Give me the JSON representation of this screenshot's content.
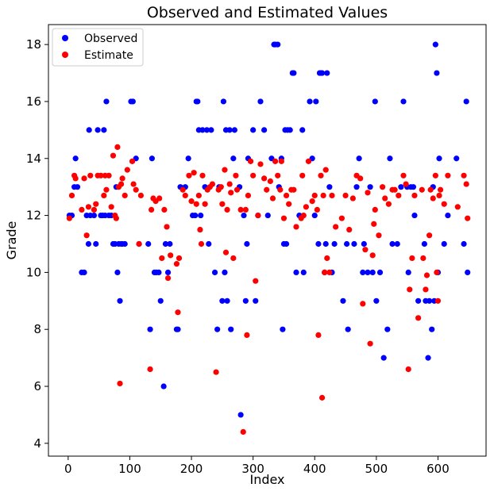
{
  "chart_data": {
    "type": "scatter",
    "title": "Observed and Estimated Values",
    "xlabel": "Index",
    "ylabel": "Grade",
    "xlim": [
      -32,
      678
    ],
    "ylim": [
      3.55,
      18.7
    ],
    "xticks": [
      0,
      100,
      200,
      300,
      400,
      500,
      600
    ],
    "yticks": [
      4,
      6,
      8,
      10,
      12,
      14,
      16,
      18
    ],
    "grid": false,
    "legend_position": "top-left",
    "series": [
      {
        "name": "Observed",
        "color": "#0000ff",
        "points": [
          [
            2,
            12
          ],
          [
            6,
            12
          ],
          [
            10,
            13
          ],
          [
            12,
            14
          ],
          [
            15,
            13
          ],
          [
            22,
            10
          ],
          [
            26,
            10
          ],
          [
            30,
            12
          ],
          [
            33,
            11
          ],
          [
            34,
            15
          ],
          [
            36,
            12
          ],
          [
            42,
            12
          ],
          [
            45,
            11
          ],
          [
            48,
            15
          ],
          [
            53,
            12
          ],
          [
            56,
            12
          ],
          [
            58,
            15
          ],
          [
            60,
            12
          ],
          [
            62,
            16
          ],
          [
            66,
            12
          ],
          [
            70,
            12
          ],
          [
            73,
            11
          ],
          [
            76,
            11
          ],
          [
            78,
            13
          ],
          [
            80,
            10
          ],
          [
            82,
            11
          ],
          [
            84,
            9
          ],
          [
            86,
            11
          ],
          [
            88,
            11
          ],
          [
            92,
            11
          ],
          [
            102,
            16
          ],
          [
            105,
            16
          ],
          [
            110,
            14
          ],
          [
            115,
            11
          ],
          [
            130,
            11
          ],
          [
            133,
            8
          ],
          [
            136,
            14
          ],
          [
            140,
            10
          ],
          [
            143,
            10
          ],
          [
            147,
            10
          ],
          [
            150,
            9
          ],
          [
            155,
            6
          ],
          [
            158,
            11
          ],
          [
            162,
            10
          ],
          [
            165,
            11
          ],
          [
            176,
            8
          ],
          [
            178,
            8
          ],
          [
            182,
            13
          ],
          [
            190,
            13
          ],
          [
            195,
            14
          ],
          [
            202,
            12
          ],
          [
            206,
            12
          ],
          [
            208,
            16
          ],
          [
            210,
            16
          ],
          [
            212,
            15
          ],
          [
            215,
            12
          ],
          [
            218,
            15
          ],
          [
            222,
            13
          ],
          [
            225,
            15
          ],
          [
            228,
            11
          ],
          [
            232,
            15
          ],
          [
            238,
            10
          ],
          [
            242,
            8
          ],
          [
            245,
            13
          ],
          [
            250,
            9
          ],
          [
            252,
            16
          ],
          [
            254,
            10
          ],
          [
            256,
            15
          ],
          [
            258,
            9
          ],
          [
            262,
            15
          ],
          [
            264,
            8
          ],
          [
            268,
            14
          ],
          [
            270,
            15
          ],
          [
            278,
            13
          ],
          [
            280,
            5
          ],
          [
            285,
            12
          ],
          [
            288,
            9
          ],
          [
            290,
            11
          ],
          [
            292,
            14
          ],
          [
            300,
            15
          ],
          [
            304,
            9
          ],
          [
            308,
            12
          ],
          [
            312,
            16
          ],
          [
            318,
            15
          ],
          [
            324,
            12
          ],
          [
            330,
            14
          ],
          [
            334,
            18
          ],
          [
            336,
            18
          ],
          [
            340,
            18
          ],
          [
            342,
            13
          ],
          [
            346,
            14
          ],
          [
            348,
            8
          ],
          [
            350,
            11
          ],
          [
            352,
            15
          ],
          [
            354,
            11
          ],
          [
            356,
            15
          ],
          [
            360,
            15
          ],
          [
            364,
            17
          ],
          [
            366,
            17
          ],
          [
            370,
            10
          ],
          [
            375,
            12
          ],
          [
            380,
            15
          ],
          [
            382,
            10
          ],
          [
            392,
            16
          ],
          [
            396,
            14
          ],
          [
            400,
            12
          ],
          [
            402,
            16
          ],
          [
            406,
            11
          ],
          [
            408,
            17
          ],
          [
            410,
            17
          ],
          [
            412,
            17
          ],
          [
            416,
            10
          ],
          [
            418,
            11
          ],
          [
            420,
            17
          ],
          [
            424,
            13
          ],
          [
            428,
            10
          ],
          [
            432,
            11
          ],
          [
            446,
            9
          ],
          [
            452,
            11
          ],
          [
            454,
            8
          ],
          [
            464,
            11
          ],
          [
            468,
            13
          ],
          [
            472,
            14
          ],
          [
            478,
            10
          ],
          [
            480,
            11
          ],
          [
            486,
            10
          ],
          [
            490,
            13
          ],
          [
            494,
            10
          ],
          [
            498,
            16
          ],
          [
            500,
            9
          ],
          [
            506,
            10
          ],
          [
            512,
            7
          ],
          [
            518,
            8
          ],
          [
            522,
            14
          ],
          [
            526,
            11
          ],
          [
            534,
            11
          ],
          [
            540,
            13
          ],
          [
            544,
            16
          ],
          [
            550,
            13
          ],
          [
            552,
            10
          ],
          [
            556,
            13
          ],
          [
            560,
            13
          ],
          [
            562,
            12
          ],
          [
            568,
            9
          ],
          [
            578,
            11
          ],
          [
            580,
            9
          ],
          [
            584,
            7
          ],
          [
            586,
            9
          ],
          [
            590,
            8
          ],
          [
            592,
            13
          ],
          [
            594,
            9
          ],
          [
            596,
            18
          ],
          [
            598,
            17
          ],
          [
            600,
            10
          ],
          [
            602,
            14
          ],
          [
            610,
            11
          ],
          [
            616,
            12
          ],
          [
            630,
            14
          ],
          [
            642,
            11
          ],
          [
            646,
            16
          ],
          [
            648,
            10
          ]
        ]
      },
      {
        "name": "Estimate",
        "color": "#ff0000",
        "points": [
          [
            2,
            11.9
          ],
          [
            6,
            12.7
          ],
          [
            10,
            13.4
          ],
          [
            12,
            13.3
          ],
          [
            22,
            12.2
          ],
          [
            26,
            13.3
          ],
          [
            30,
            11.3
          ],
          [
            33,
            12.3
          ],
          [
            36,
            13.4
          ],
          [
            42,
            12.2
          ],
          [
            45,
            12.4
          ],
          [
            48,
            13.4
          ],
          [
            53,
            13.4
          ],
          [
            58,
            12.7
          ],
          [
            60,
            13.4
          ],
          [
            62,
            12.9
          ],
          [
            66,
            13.4
          ],
          [
            70,
            12.3
          ],
          [
            73,
            14.1
          ],
          [
            76,
            12.0
          ],
          [
            78,
            11.9
          ],
          [
            80,
            14.4
          ],
          [
            82,
            13.0
          ],
          [
            84,
            6.1
          ],
          [
            86,
            13.1
          ],
          [
            88,
            13.3
          ],
          [
            92,
            12.7
          ],
          [
            96,
            13.6
          ],
          [
            104,
            13.9
          ],
          [
            106,
            13.1
          ],
          [
            110,
            12.9
          ],
          [
            115,
            11.0
          ],
          [
            118,
            12.7
          ],
          [
            133,
            6.6
          ],
          [
            135,
            12.2
          ],
          [
            138,
            12.6
          ],
          [
            142,
            12.5
          ],
          [
            148,
            12.6
          ],
          [
            152,
            10.5
          ],
          [
            156,
            12.2
          ],
          [
            160,
            11.6
          ],
          [
            162,
            9.8
          ],
          [
            166,
            10.6
          ],
          [
            176,
            10.3
          ],
          [
            178,
            8.6
          ],
          [
            180,
            10.5
          ],
          [
            186,
            12.9
          ],
          [
            190,
            12.7
          ],
          [
            196,
            13.4
          ],
          [
            200,
            12.5
          ],
          [
            204,
            13.5
          ],
          [
            208,
            12.4
          ],
          [
            212,
            12.7
          ],
          [
            214,
            11.5
          ],
          [
            216,
            11.0
          ],
          [
            218,
            13.4
          ],
          [
            222,
            12.4
          ],
          [
            226,
            12.9
          ],
          [
            230,
            13.0
          ],
          [
            234,
            13.1
          ],
          [
            240,
            6.5
          ],
          [
            244,
            12.9
          ],
          [
            248,
            13.0
          ],
          [
            250,
            12.4
          ],
          [
            254,
            13.6
          ],
          [
            256,
            10.7
          ],
          [
            258,
            12.2
          ],
          [
            262,
            13.1
          ],
          [
            264,
            12.8
          ],
          [
            268,
            10.5
          ],
          [
            272,
            13.4
          ],
          [
            274,
            12.9
          ],
          [
            280,
            12.2
          ],
          [
            284,
            4.4
          ],
          [
            288,
            12.2
          ],
          [
            290,
            7.8
          ],
          [
            292,
            12.7
          ],
          [
            296,
            13.9
          ],
          [
            300,
            13.4
          ],
          [
            304,
            9.7
          ],
          [
            308,
            12.0
          ],
          [
            312,
            13.8
          ],
          [
            318,
            13.3
          ],
          [
            322,
            12.9
          ],
          [
            328,
            13.2
          ],
          [
            332,
            12.6
          ],
          [
            336,
            13.9
          ],
          [
            340,
            13.4
          ],
          [
            344,
            12.9
          ],
          [
            346,
            13.9
          ],
          [
            350,
            11.9
          ],
          [
            354,
            12.7
          ],
          [
            358,
            12.4
          ],
          [
            362,
            12.9
          ],
          [
            366,
            12.9
          ],
          [
            370,
            11.6
          ],
          [
            378,
            11.9
          ],
          [
            380,
            13.4
          ],
          [
            382,
            12.0
          ],
          [
            386,
            12.3
          ],
          [
            390,
            13.9
          ],
          [
            396,
            12.5
          ],
          [
            400,
            12.7
          ],
          [
            404,
            12.2
          ],
          [
            406,
            7.8
          ],
          [
            410,
            13.4
          ],
          [
            412,
            5.6
          ],
          [
            414,
            12.7
          ],
          [
            416,
            10.0
          ],
          [
            418,
            13.6
          ],
          [
            420,
            10.5
          ],
          [
            424,
            10.0
          ],
          [
            428,
            12.7
          ],
          [
            434,
            11.6
          ],
          [
            444,
            11.9
          ],
          [
            450,
            12.7
          ],
          [
            456,
            11.5
          ],
          [
            462,
            12.6
          ],
          [
            468,
            13.4
          ],
          [
            474,
            13.3
          ],
          [
            478,
            8.9
          ],
          [
            482,
            10.8
          ],
          [
            486,
            12.8
          ],
          [
            490,
            7.5
          ],
          [
            494,
            10.6
          ],
          [
            496,
            11.7
          ],
          [
            498,
            12.2
          ],
          [
            504,
            11.3
          ],
          [
            510,
            13.0
          ],
          [
            514,
            12.6
          ],
          [
            520,
            12.4
          ],
          [
            526,
            12.9
          ],
          [
            530,
            12.9
          ],
          [
            536,
            12.7
          ],
          [
            544,
            13.4
          ],
          [
            548,
            13.1
          ],
          [
            552,
            6.6
          ],
          [
            554,
            9.4
          ],
          [
            558,
            10.5
          ],
          [
            562,
            12.7
          ],
          [
            568,
            8.4
          ],
          [
            574,
            12.9
          ],
          [
            576,
            10.5
          ],
          [
            580,
            9.4
          ],
          [
            582,
            9.9
          ],
          [
            586,
            11.3
          ],
          [
            588,
            12.9
          ],
          [
            592,
            12.6
          ],
          [
            596,
            13.4
          ],
          [
            598,
            10.0
          ],
          [
            600,
            9.0
          ],
          [
            602,
            12.7
          ],
          [
            604,
            12.9
          ],
          [
            610,
            12.4
          ],
          [
            616,
            13.4
          ],
          [
            632,
            12.3
          ],
          [
            642,
            13.4
          ],
          [
            646,
            13.1
          ],
          [
            648,
            11.9
          ]
        ]
      }
    ]
  }
}
